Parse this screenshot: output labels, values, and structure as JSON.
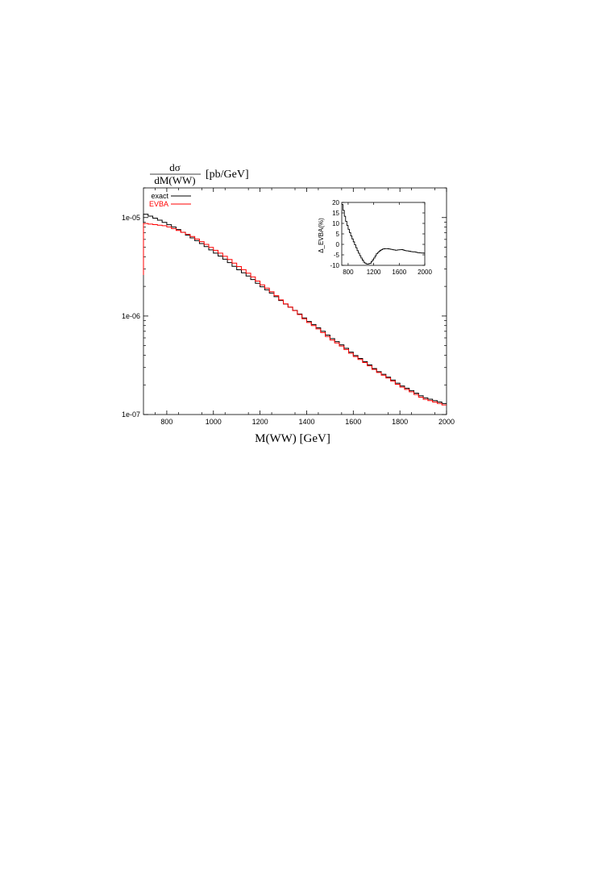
{
  "chart_data": [
    {
      "type": "line",
      "ylabel": {
        "numerator": "dσ",
        "denominator": "dM(WW)",
        "unit": "[pb/GeV]"
      },
      "xlabel": "M(WW) [GeV]",
      "xlim": [
        700,
        2000
      ],
      "ylim": [
        1e-07,
        2e-05
      ],
      "yscale": "log",
      "xticks": [
        800,
        1000,
        1200,
        1400,
        1600,
        1800,
        2000
      ],
      "xtick_labels": [
        "800",
        "1000",
        "1200",
        "1400",
        "1600",
        "1800",
        "2000"
      ],
      "yticks": [
        1e-07,
        1e-06,
        1e-05
      ],
      "ytick_labels": [
        "1e-07",
        "1e-06",
        "1e-05"
      ],
      "legend_position": "top-left",
      "bin_width": 20,
      "series": [
        {
          "name": "exact",
          "color": "#000000",
          "x": [
            710,
            800,
            900,
            1000,
            1100,
            1200,
            1300,
            1400,
            1500,
            1600,
            1700,
            1800,
            1900,
            2000
          ],
          "values": [
            1.08e-05,
            8.7e-06,
            6.4e-06,
            4.5e-06,
            3.05e-06,
            2.05e-06,
            1.37e-06,
            9.1e-07,
            6.1e-07,
            4.1e-07,
            2.8e-07,
            2e-07,
            1.5e-07,
            1.27e-07
          ]
        },
        {
          "name": "EVBA",
          "color": "#ff0000",
          "x": [
            710,
            800,
            900,
            1000,
            1100,
            1200,
            1300,
            1400,
            1500,
            1600,
            1700,
            1800,
            1900,
            2000
          ],
          "values": [
            8.7e-06,
            8.2e-06,
            6.6e-06,
            4.8e-06,
            3.3e-06,
            2.15e-06,
            1.38e-06,
            8.9e-07,
            5.9e-07,
            4e-07,
            2.75e-07,
            1.95e-07,
            1.45e-07,
            1.23e-07
          ]
        }
      ]
    },
    {
      "type": "line",
      "ylabel": "Δ_EVBA(%)",
      "xlim": [
        700,
        2000
      ],
      "ylim": [
        -10,
        20
      ],
      "xticks": [
        800,
        1200,
        1600,
        2000
      ],
      "xtick_labels": [
        "800",
        "1200",
        "1600",
        "2000"
      ],
      "yticks": [
        -10,
        -5,
        0,
        5,
        10,
        15,
        20
      ],
      "ytick_labels": [
        "-10",
        "-5",
        "0",
        "5",
        "10",
        "15",
        "20"
      ],
      "bin_width": 20,
      "series": [
        {
          "color": "#000000",
          "x": [
            710,
            760,
            800,
            850,
            900,
            950,
            1000,
            1050,
            1100,
            1150,
            1200,
            1250,
            1300,
            1350,
            1400,
            1450,
            1500,
            1550,
            1600,
            1650,
            1700,
            1750,
            1800,
            1850,
            1900,
            1950,
            2000
          ],
          "values": [
            19,
            12,
            8,
            4,
            0.5,
            -3,
            -6,
            -8.5,
            -9.5,
            -9,
            -7,
            -4.5,
            -3,
            -2.2,
            -2,
            -2.2,
            -2.5,
            -2.8,
            -2.6,
            -2.5,
            -3,
            -3.2,
            -3.5,
            -3.6,
            -4,
            -4.1,
            -4.2
          ]
        }
      ]
    }
  ]
}
